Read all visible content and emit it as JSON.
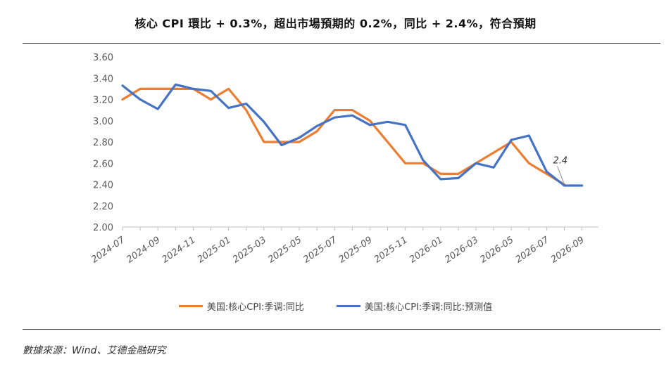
{
  "title": "核心 CPI 環比 + 0.3%，超出市場預期的 0.2%，同比 + 2.4%，符合預期",
  "source": "數據來源：Wind、艾德金融研究",
  "colors": {
    "actual": "#ED7D31",
    "forecast": "#4472C4",
    "axis": "#BFBFBF"
  },
  "chart_data": {
    "type": "line",
    "ylim": [
      2.0,
      3.6
    ],
    "yticks": [
      "3.60",
      "3.40",
      "3.20",
      "3.00",
      "2.80",
      "2.60",
      "2.40",
      "2.20",
      "2.00"
    ],
    "x_tick_labels": [
      "2024-07",
      "2024-09",
      "2024-11",
      "2025-01",
      "2025-03",
      "2025-05",
      "2025-07",
      "2025-09",
      "2025-11",
      "2026-01",
      "2026-03",
      "2026-05",
      "2026-07",
      "2026-09"
    ],
    "grid": false,
    "legend_position": "bottom",
    "series": [
      {
        "name": "美国:核心CPI:季调:同比",
        "values": [
          3.2,
          3.3,
          3.3,
          3.3,
          3.3,
          3.2,
          3.3,
          3.1,
          2.8,
          2.8,
          2.8,
          2.9,
          3.1,
          3.1,
          3.0,
          2.8,
          2.6,
          2.6,
          2.5,
          2.5,
          2.6,
          2.7,
          2.8,
          2.6,
          2.5,
          2.4
        ]
      },
      {
        "name": "美国:核心CPI:季调:同比:预测值",
        "values": [
          3.33,
          3.2,
          3.11,
          3.34,
          3.3,
          3.28,
          3.12,
          3.16,
          2.99,
          2.77,
          2.84,
          2.95,
          3.03,
          3.05,
          2.96,
          2.99,
          2.96,
          2.63,
          2.45,
          2.46,
          2.6,
          2.56,
          2.82,
          2.86,
          2.52,
          2.39,
          2.39
        ]
      }
    ],
    "annotations": [
      {
        "text": "2.4"
      }
    ]
  }
}
